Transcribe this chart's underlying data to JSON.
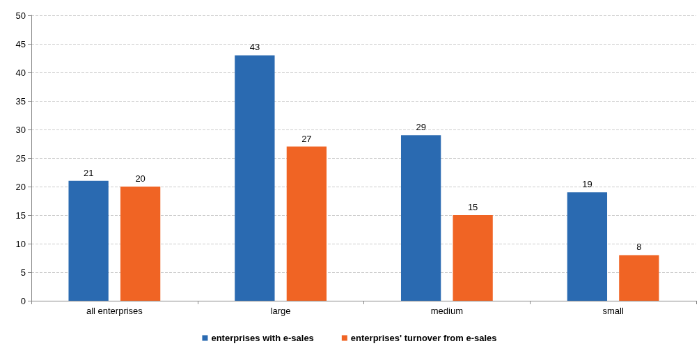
{
  "chart_data": {
    "type": "bar",
    "categories": [
      "all enterprises",
      "large",
      "medium",
      "small"
    ],
    "series": [
      {
        "name": "enterprises with e-sales",
        "color": "#2a6ab1",
        "values": [
          21,
          43,
          29,
          19
        ]
      },
      {
        "name": "enterprises' turnover from e-sales",
        "color": "#f06424",
        "values": [
          20,
          27,
          15,
          8
        ]
      }
    ],
    "ylim": [
      0,
      50
    ],
    "yticks": [
      0,
      5,
      10,
      15,
      20,
      25,
      30,
      35,
      40,
      45,
      50
    ],
    "grid": "y",
    "legend": "bottom",
    "data_labels": true
  }
}
